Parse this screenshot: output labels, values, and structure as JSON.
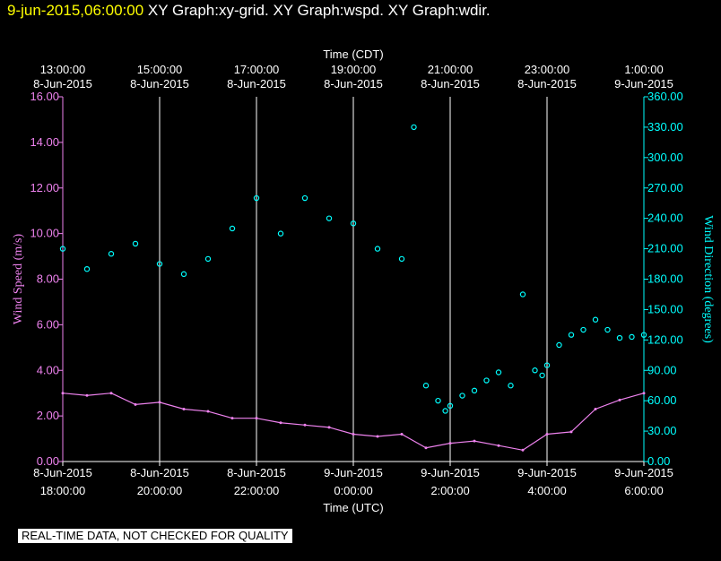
{
  "header": {
    "timestamp": "9-jun-2015,06:00:00",
    "titles": "XY Graph:xy-grid.  XY Graph:wspd.  XY Graph:wdir."
  },
  "disclaimer": "REAL-TIME DATA, NOT CHECKED FOR QUALITY",
  "chart_data": {
    "type": "line",
    "top_axis": {
      "title": "Time (CDT)",
      "ticks": [
        {
          "hour": 0,
          "l1": "13:00:00",
          "l2": "8-Jun-2015"
        },
        {
          "hour": 2,
          "l1": "15:00:00",
          "l2": "8-Jun-2015"
        },
        {
          "hour": 4,
          "l1": "17:00:00",
          "l2": "8-Jun-2015"
        },
        {
          "hour": 6,
          "l1": "19:00:00",
          "l2": "8-Jun-2015"
        },
        {
          "hour": 8,
          "l1": "21:00:00",
          "l2": "8-Jun-2015"
        },
        {
          "hour": 10,
          "l1": "23:00:00",
          "l2": "8-Jun-2015"
        },
        {
          "hour": 12,
          "l1": "1:00:00",
          "l2": "9-Jun-2015"
        }
      ]
    },
    "bottom_axis": {
      "title": "Time (UTC)",
      "ticks": [
        {
          "hour": 0,
          "l1": "8-Jun-2015",
          "l2": "18:00:00"
        },
        {
          "hour": 2,
          "l1": "8-Jun-2015",
          "l2": "20:00:00"
        },
        {
          "hour": 4,
          "l1": "8-Jun-2015",
          "l2": "22:00:00"
        },
        {
          "hour": 6,
          "l1": "9-Jun-2015",
          "l2": "0:00:00"
        },
        {
          "hour": 8,
          "l1": "9-Jun-2015",
          "l2": "2:00:00"
        },
        {
          "hour": 10,
          "l1": "9-Jun-2015",
          "l2": "4:00:00"
        },
        {
          "hour": 12,
          "l1": "9-Jun-2015",
          "l2": "6:00:00"
        }
      ]
    },
    "x_range_hours": [
      0,
      12
    ],
    "left_axis": {
      "label": "Wind Speed (m/s)",
      "range": [
        0,
        16
      ],
      "ticks": [
        "0.00",
        "2.00",
        "4.00",
        "6.00",
        "8.00",
        "10.00",
        "12.00",
        "14.00",
        "16.00"
      ]
    },
    "right_axis": {
      "label": "Wind Direction (degrees)",
      "range": [
        0,
        360
      ],
      "ticks": [
        "0.00",
        "30.00",
        "60.00",
        "90.00",
        "120.00",
        "150.00",
        "180.00",
        "210.00",
        "240.00",
        "270.00",
        "300.00",
        "330.00",
        "360.00"
      ]
    },
    "vertical_grid": true,
    "series": [
      {
        "style": "line",
        "axis": "left",
        "color": "#ee82ee",
        "x": [
          0,
          0.5,
          1,
          1.5,
          2,
          2.5,
          3,
          3.5,
          4,
          4.5,
          5,
          5.5,
          6,
          6.5,
          7,
          7.5,
          8,
          8.5,
          9,
          9.5,
          10,
          10.5,
          11,
          11.5,
          12
        ],
        "y": [
          3.0,
          2.9,
          3.0,
          2.5,
          2.6,
          2.3,
          2.2,
          1.9,
          1.9,
          1.7,
          1.6,
          1.5,
          1.2,
          1.1,
          1.2,
          0.6,
          0.8,
          0.9,
          0.7,
          0.5,
          1.2,
          1.3,
          2.3,
          2.7,
          3.0
        ]
      },
      {
        "style": "scatter",
        "axis": "right",
        "color": "#00ffff",
        "x": [
          0,
          0.5,
          1,
          1.5,
          2,
          2.5,
          3,
          3.5,
          4,
          4.5,
          5,
          5.5,
          6,
          6.5,
          7,
          7.25,
          7.5,
          7.75,
          7.9,
          8,
          8.25,
          8.5,
          8.75,
          9,
          9.25,
          9.5,
          9.75,
          9.9,
          10,
          10.25,
          10.5,
          10.75,
          11,
          11.25,
          11.5,
          11.75,
          12
        ],
        "y": [
          210,
          190,
          205,
          215,
          195,
          185,
          200,
          230,
          260,
          225,
          260,
          240,
          235,
          210,
          200,
          330,
          75,
          60,
          50,
          55,
          65,
          70,
          80,
          88,
          75,
          165,
          90,
          85,
          95,
          115,
          125,
          130,
          140,
          130,
          122,
          123,
          125
        ]
      }
    ]
  }
}
